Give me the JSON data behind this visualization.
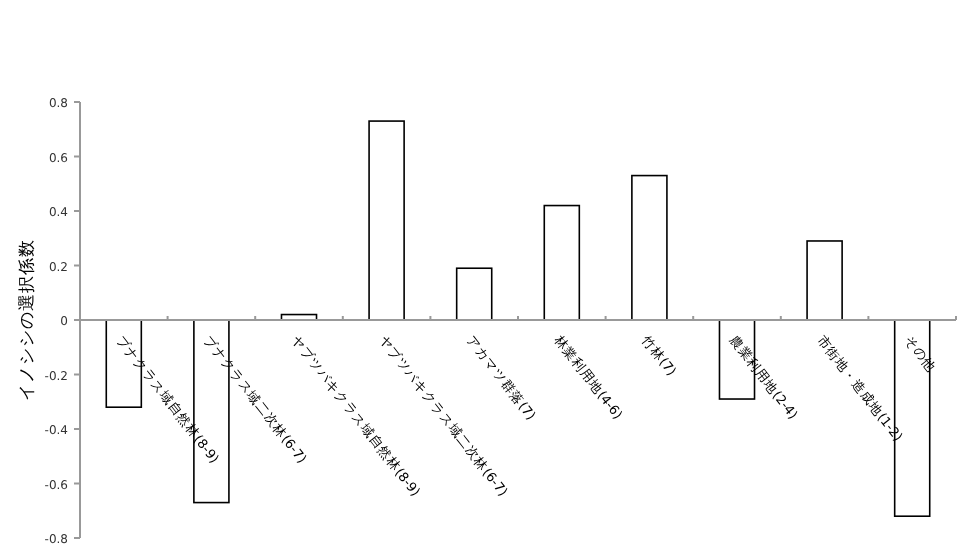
{
  "chart_data": {
    "type": "bar",
    "ylabel": "イノシシの選択係数",
    "categories": [
      "ブナクラス域自然林(8-9)",
      "ブナクラス域二次林(6-7)",
      "ヤブツバキクラス域自然林(8-9)",
      "ヤブツバキクラス域二次林(6-7)",
      "アカマツ群落(7)",
      "林業利用地(4-6)",
      "竹林(7)",
      "農業利用地(2-4)",
      "市街地・造成地(1-2)",
      "その他"
    ],
    "values": [
      -0.32,
      -0.67,
      0.02,
      0.73,
      0.19,
      0.42,
      0.53,
      -0.29,
      0.29,
      -0.72
    ],
    "color": "#ffffff",
    "ylim": [
      -0.8,
      0.8
    ],
    "yticks": [
      0.8,
      0.6,
      0.4,
      0.2,
      0,
      -0.2,
      -0.4,
      -0.6,
      -0.8
    ],
    "grid": false
  }
}
